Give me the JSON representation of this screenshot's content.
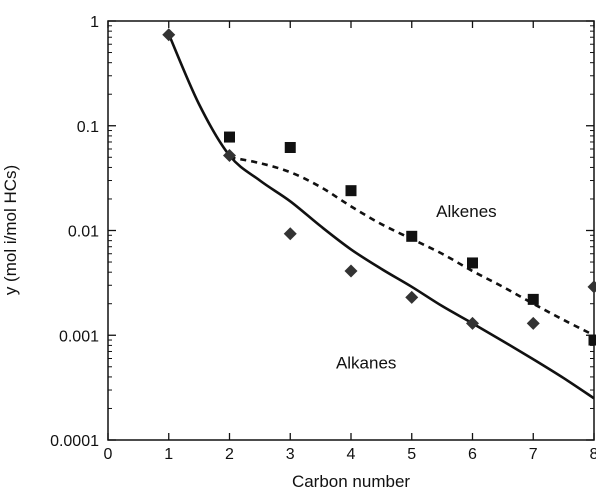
{
  "chart_data": {
    "type": "scatter",
    "title": "",
    "xlabel": "Carbon number",
    "ylabel": "y (mol i/mol HCs)",
    "xlim": [
      0,
      8
    ],
    "ylim": [
      0.0001,
      1
    ],
    "yscale": "log",
    "grid": false,
    "x_ticks": [
      "0",
      "1",
      "2",
      "3",
      "4",
      "5",
      "6",
      "7",
      "8"
    ],
    "y_ticks": [
      "0.0001",
      "0.001",
      "0.01",
      "0.1",
      "1"
    ],
    "y_tick_values": [
      0.0001,
      0.001,
      0.01,
      0.1,
      1
    ],
    "annotations": [
      {
        "text": "Alkenes",
        "x": 5.9,
        "y": 0.0135
      },
      {
        "text": "Alkanes",
        "x": 4.25,
        "y": 0.00048
      }
    ],
    "series": [
      {
        "kind": "points",
        "marker": "diamond",
        "x": [
          1,
          2,
          3,
          4,
          5,
          6,
          7,
          8
        ],
        "y": [
          0.74,
          0.052,
          0.0093,
          0.0041,
          0.0023,
          0.0013,
          0.0013,
          0.0029
        ]
      },
      {
        "kind": "points",
        "marker": "square",
        "x": [
          2,
          3,
          4,
          5,
          6,
          7,
          8
        ],
        "y": [
          0.078,
          0.062,
          0.024,
          0.0088,
          0.0049,
          0.0022,
          0.0009
        ]
      },
      {
        "kind": "line",
        "style": "solid",
        "x": [
          1,
          1.5,
          2,
          2.5,
          3,
          3.5,
          4,
          4.5,
          5,
          5.5,
          6,
          6.5,
          7,
          7.5,
          8
        ],
        "y": [
          0.75,
          0.16,
          0.052,
          0.03,
          0.019,
          0.011,
          0.0066,
          0.0043,
          0.0029,
          0.0019,
          0.0013,
          0.00088,
          0.00059,
          0.00039,
          0.00025
        ]
      },
      {
        "kind": "line",
        "style": "dashed",
        "x": [
          2,
          2.5,
          3,
          3.5,
          4,
          4.5,
          5,
          5.5,
          6,
          6.5,
          7,
          7.5,
          8
        ],
        "y": [
          0.05,
          0.044,
          0.036,
          0.026,
          0.017,
          0.0115,
          0.0083,
          0.006,
          0.0041,
          0.0029,
          0.002,
          0.0014,
          0.001
        ]
      }
    ]
  }
}
